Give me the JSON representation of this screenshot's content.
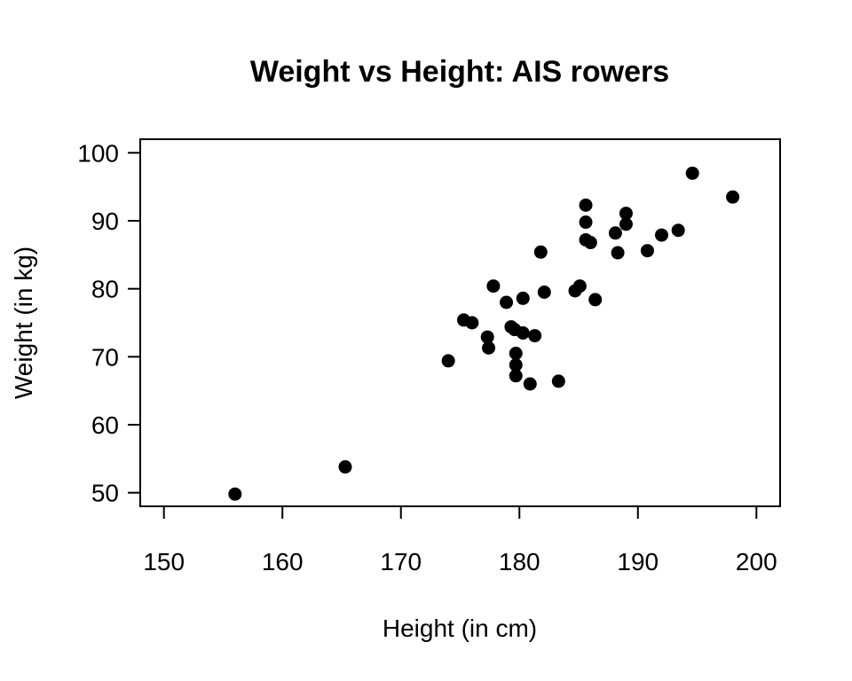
{
  "chart_data": {
    "type": "scatter",
    "title": "Weight vs Height: AIS rowers",
    "xlabel": "Height (in cm)",
    "ylabel": "Weight (in kg)",
    "xlim": [
      148,
      202
    ],
    "ylim": [
      48,
      102
    ],
    "xticks": [
      150,
      160,
      170,
      180,
      190,
      200
    ],
    "yticks": [
      50,
      60,
      70,
      80,
      90,
      100
    ],
    "xtick_labels": [
      "150",
      "160",
      "170",
      "180",
      "190",
      "200"
    ],
    "ytick_labels": [
      "50",
      "60",
      "70",
      "80",
      "90",
      "100"
    ],
    "grid": false,
    "marker_color": "#000000",
    "points": [
      {
        "x": 156.0,
        "y": 49.8
      },
      {
        "x": 165.3,
        "y": 53.8
      },
      {
        "x": 174.0,
        "y": 69.4
      },
      {
        "x": 175.3,
        "y": 75.4
      },
      {
        "x": 176.0,
        "y": 75.0
      },
      {
        "x": 177.3,
        "y": 72.9
      },
      {
        "x": 177.4,
        "y": 71.3
      },
      {
        "x": 177.8,
        "y": 80.4
      },
      {
        "x": 178.9,
        "y": 78.0
      },
      {
        "x": 179.3,
        "y": 74.4
      },
      {
        "x": 179.6,
        "y": 74.0
      },
      {
        "x": 179.7,
        "y": 70.5
      },
      {
        "x": 179.7,
        "y": 68.8
      },
      {
        "x": 179.7,
        "y": 67.2
      },
      {
        "x": 180.3,
        "y": 78.6
      },
      {
        "x": 180.3,
        "y": 73.5
      },
      {
        "x": 180.9,
        "y": 66.0
      },
      {
        "x": 181.3,
        "y": 73.1
      },
      {
        "x": 181.8,
        "y": 85.4
      },
      {
        "x": 182.1,
        "y": 79.5
      },
      {
        "x": 183.3,
        "y": 66.4
      },
      {
        "x": 184.7,
        "y": 79.7
      },
      {
        "x": 185.1,
        "y": 80.4
      },
      {
        "x": 185.6,
        "y": 92.3
      },
      {
        "x": 185.6,
        "y": 89.8
      },
      {
        "x": 185.6,
        "y": 87.2
      },
      {
        "x": 186.0,
        "y": 86.8
      },
      {
        "x": 186.4,
        "y": 78.4
      },
      {
        "x": 188.1,
        "y": 88.2
      },
      {
        "x": 188.3,
        "y": 85.3
      },
      {
        "x": 189.0,
        "y": 91.1
      },
      {
        "x": 189.0,
        "y": 89.5
      },
      {
        "x": 190.8,
        "y": 85.6
      },
      {
        "x": 192.0,
        "y": 87.9
      },
      {
        "x": 193.4,
        "y": 88.6
      },
      {
        "x": 194.6,
        "y": 97.0
      },
      {
        "x": 198.0,
        "y": 93.5
      }
    ]
  }
}
